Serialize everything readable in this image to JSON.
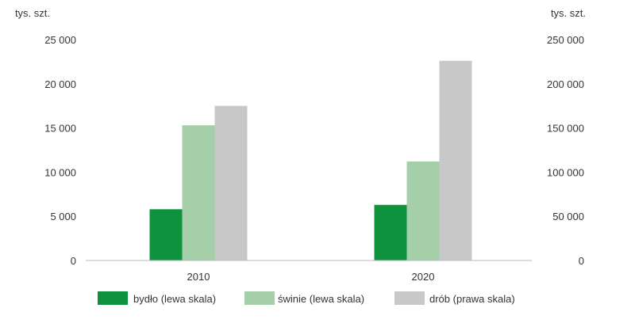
{
  "chart_data": {
    "type": "bar",
    "title": "",
    "categories": [
      "2010",
      "2020"
    ],
    "left_axis": {
      "unit_label": "tys. szt.",
      "range": [
        0,
        25000
      ],
      "ticks": [
        0,
        5000,
        10000,
        15000,
        20000,
        25000
      ],
      "tick_labels": [
        "0",
        "5 000",
        "10 000",
        "15 000",
        "20 000",
        "25 000"
      ]
    },
    "right_axis": {
      "unit_label": "tys. szt.",
      "range": [
        0,
        250000
      ],
      "ticks": [
        0,
        50000,
        100000,
        150000,
        200000,
        250000
      ],
      "tick_labels": [
        "0",
        "50 000",
        "100 000",
        "150 000",
        "200 000",
        "250 000"
      ]
    },
    "series": [
      {
        "name": "bydło (lewa skala)",
        "axis": "left",
        "color": "#0f923d",
        "values": [
          5800,
          6300
        ]
      },
      {
        "name": "świnie (lewa skala)",
        "axis": "left",
        "color": "#a5cfa9",
        "values": [
          15300,
          11200
        ]
      },
      {
        "name": "drób (prawa skala)",
        "axis": "right",
        "color": "#c8c8c8",
        "values": [
          175000,
          226000
        ]
      }
    ],
    "legend_position": "bottom",
    "grid": false
  }
}
